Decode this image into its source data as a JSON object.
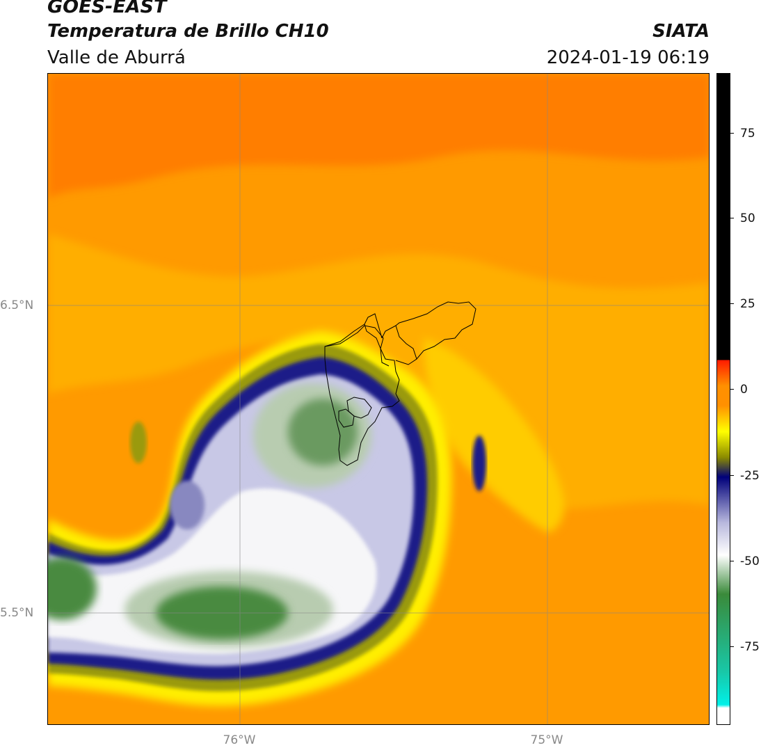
{
  "title": {
    "satellite": "GOES-EAST",
    "product": "Temperatura de Brillo CH10",
    "region": "Valle de Aburrá",
    "agency": "SIATA",
    "datetime": "2024-01-19 06:19"
  },
  "axes": {
    "lat_labels": [
      "6.5°N",
      "5.5°N"
    ],
    "lon_labels": [
      "76°W",
      "75°W"
    ]
  },
  "colorbar": {
    "ticks": [
      "75",
      "50",
      "25",
      "0",
      "-25",
      "-50",
      "-75"
    ],
    "colors": {
      "black": "#000000",
      "red": "#ff1a00",
      "orange": "#ff9000",
      "yellow": "#ffff00",
      "olive": "#8a8a00",
      "navy": "#00007a",
      "lavender": "#b8b8dd",
      "white": "#ffffff",
      "green": "#3a8a3a",
      "teal": "#18c8a8",
      "cyan": "#00f0e8"
    }
  },
  "map": {
    "background_color": "#ff9800",
    "cloud_colors": {
      "yellow": "#ffee00",
      "olive": "#b0b000",
      "navy": "#1a1a88",
      "lavender": "#c8c8e6",
      "white": "#f6f6f8",
      "lightgreen": "#b8ccb0",
      "green": "#4a8a40"
    }
  }
}
